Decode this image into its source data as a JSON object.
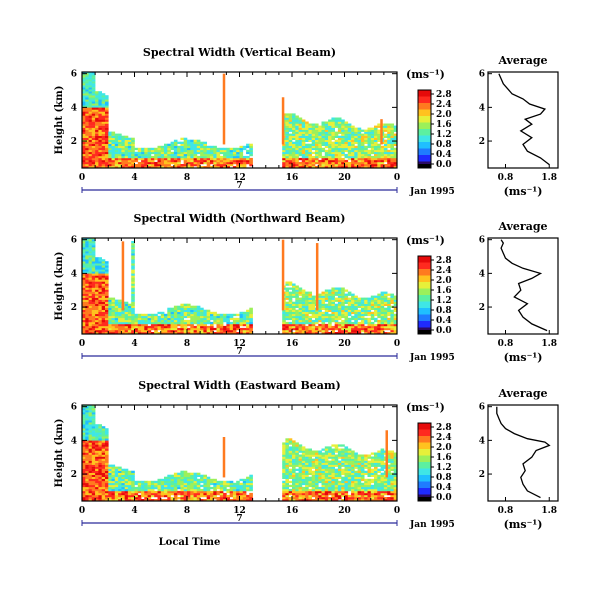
{
  "colors": {
    "background": "#ffffff",
    "colorscale": [
      "#2a0a66",
      "#1f2bff",
      "#1f7bff",
      "#1fbfff",
      "#3fe6e6",
      "#5cf0a0",
      "#9cf05a",
      "#e6f03a",
      "#ffc21f",
      "#ff7a1f",
      "#ff2a1f",
      "#e60a0a"
    ],
    "line": "#000000"
  },
  "chart_data": [
    {
      "type": "heatmap",
      "panel": "vertical",
      "title": "Spectral Width (Vertical Beam)",
      "ylabel": "Height (km)",
      "xlabel": "",
      "x_ticks": [
        "0",
        "4",
        "8",
        "12",
        "16",
        "20",
        "0"
      ],
      "y_ticks": [
        "6",
        "4",
        "2"
      ],
      "xlim": [
        0,
        24
      ],
      "ylim": [
        0.4,
        6.1
      ],
      "day_label": "7",
      "date_label": "Jan 1995",
      "colorbar_unit": "(ms⁻¹)",
      "colorbar_ticks": [
        "2.8",
        "2.4",
        "2.0",
        "1.6",
        "1.2",
        "0.8",
        "0.4",
        "0.0"
      ],
      "gaps": [
        [
          12.8,
          15.2
        ]
      ],
      "spikes": [
        {
          "x": 10.8,
          "top": 6.0
        },
        {
          "x": 15.3,
          "top": 4.6
        },
        {
          "x": 22.8,
          "top": 3.3
        }
      ],
      "profile": {
        "title": "Average",
        "xlabel": "(ms⁻¹)",
        "x_ticks": [
          "0.8",
          "1.8"
        ],
        "y_ticks": [
          "6",
          "4",
          "2"
        ],
        "xlim": [
          0.4,
          2.0
        ],
        "ylim": [
          0.4,
          6.1
        ],
        "heights": [
          0.6,
          1.0,
          1.4,
          1.8,
          2.2,
          2.6,
          3.0,
          3.3,
          3.6,
          3.9,
          4.2,
          4.5,
          4.8,
          5.1,
          5.4,
          5.7,
          6.0
        ],
        "values": [
          1.8,
          1.6,
          1.3,
          1.2,
          1.4,
          1.15,
          1.4,
          1.25,
          1.6,
          1.7,
          1.35,
          1.2,
          0.95,
          0.85,
          0.75,
          0.7,
          0.65
        ]
      }
    },
    {
      "type": "heatmap",
      "panel": "northward",
      "title": "Spectral Width (Northward Beam)",
      "ylabel": "Height (km)",
      "xlabel": "",
      "x_ticks": [
        "0",
        "4",
        "8",
        "12",
        "16",
        "20",
        "0"
      ],
      "y_ticks": [
        "6",
        "4",
        "2"
      ],
      "xlim": [
        0,
        24
      ],
      "ylim": [
        0.4,
        6.1
      ],
      "day_label": "7",
      "date_label": "Jan 1995",
      "colorbar_unit": "(ms⁻¹)",
      "colorbar_ticks": [
        "2.8",
        "2.4",
        "2.0",
        "1.6",
        "1.2",
        "0.8",
        "0.4",
        "0.0"
      ],
      "gaps": [
        [
          12.8,
          15.2
        ]
      ],
      "spikes": [
        {
          "x": 3.1,
          "top": 5.9
        },
        {
          "x": 15.3,
          "top": 6.0
        },
        {
          "x": 17.9,
          "top": 5.8
        }
      ],
      "profile": {
        "title": "Average",
        "xlabel": "(ms⁻¹)",
        "x_ticks": [
          "0.8",
          "1.8"
        ],
        "y_ticks": [
          "6",
          "4",
          "2"
        ],
        "xlim": [
          0.4,
          2.0
        ],
        "ylim": [
          0.4,
          6.1
        ],
        "heights": [
          0.6,
          1.0,
          1.4,
          1.8,
          2.2,
          2.6,
          3.0,
          3.4,
          3.7,
          4.0,
          4.3,
          4.6,
          4.9,
          5.2,
          5.5,
          5.8,
          6.0
        ],
        "values": [
          1.75,
          1.4,
          1.2,
          1.1,
          1.3,
          1.0,
          1.15,
          1.1,
          1.4,
          1.6,
          1.2,
          0.95,
          0.8,
          0.75,
          0.7,
          0.75,
          0.7
        ]
      }
    },
    {
      "type": "heatmap",
      "panel": "eastward",
      "title": "Spectral Width (Eastward Beam)",
      "ylabel": "Height (km)",
      "xlabel": "Local Time",
      "x_ticks": [
        "0",
        "4",
        "8",
        "12",
        "16",
        "20",
        "0"
      ],
      "y_ticks": [
        "6",
        "4",
        "2"
      ],
      "xlim": [
        0,
        24
      ],
      "ylim": [
        0.4,
        6.1
      ],
      "day_label": "7",
      "date_label": "Jan 1995",
      "colorbar_unit": "(ms⁻¹)",
      "colorbar_ticks": [
        "2.8",
        "2.4",
        "2.0",
        "1.6",
        "1.2",
        "0.8",
        "0.4",
        "0.0"
      ],
      "gaps": [
        [
          12.8,
          15.2
        ]
      ],
      "spikes": [
        {
          "x": 10.8,
          "top": 4.2
        },
        {
          "x": 23.2,
          "top": 4.6
        }
      ],
      "profile": {
        "title": "Average",
        "xlabel": "(ms⁻¹)",
        "x_ticks": [
          "0.8",
          "1.8"
        ],
        "y_ticks": [
          "6",
          "4",
          "2"
        ],
        "xlim": [
          0.4,
          2.0
        ],
        "ylim": [
          0.4,
          6.1
        ],
        "heights": [
          0.6,
          1.0,
          1.4,
          1.8,
          2.2,
          2.6,
          3.0,
          3.4,
          3.7,
          3.9,
          4.1,
          4.4,
          4.7,
          5.0,
          5.3,
          5.6,
          6.0
        ],
        "values": [
          1.6,
          1.3,
          1.2,
          1.15,
          1.25,
          1.2,
          1.4,
          1.5,
          1.8,
          1.7,
          1.3,
          1.0,
          0.8,
          0.7,
          0.65,
          0.6,
          0.6
        ]
      }
    }
  ]
}
